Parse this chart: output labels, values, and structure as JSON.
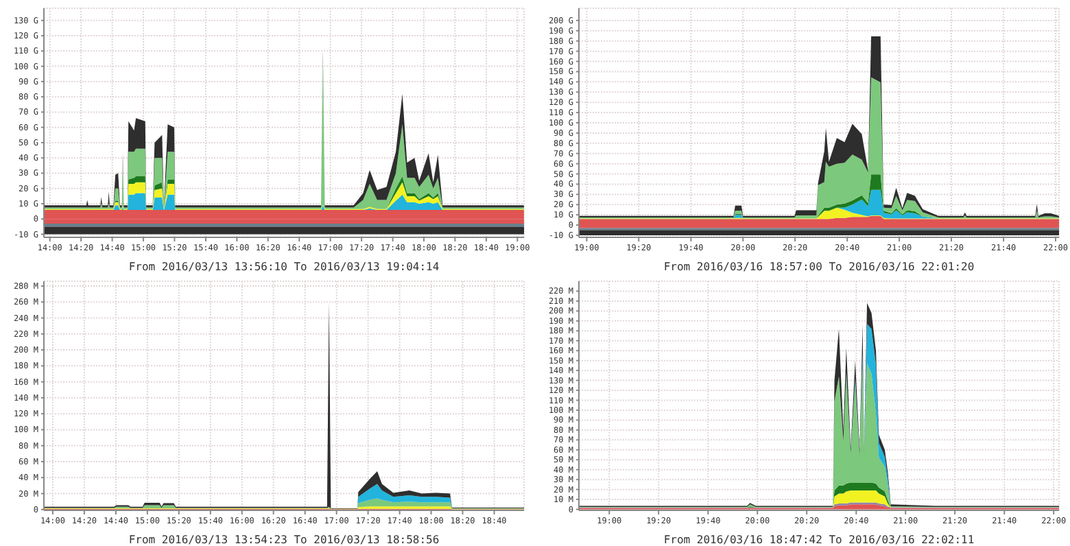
{
  "chart_data": [
    {
      "type": "area",
      "stacked": true,
      "grid": true,
      "xlabel": "From 2016/03/13 13:56:10 To 2016/03/13 19:04:14",
      "x": [
        13.936,
        14.39,
        14.4,
        14.41,
        14.54,
        14.55,
        14.56,
        14.62,
        14.63,
        14.64,
        14.68,
        14.7,
        14.73,
        14.75,
        14.77,
        14.78,
        14.79,
        14.83,
        14.84,
        14.9,
        14.92,
        15.02,
        15.03,
        15.1,
        15.12,
        15.2,
        15.22,
        15.26,
        15.33,
        15.34,
        16.9,
        16.92,
        16.94,
        17.25,
        17.35,
        17.42,
        17.5,
        17.6,
        17.7,
        17.77,
        17.82,
        17.9,
        17.95,
        18.05,
        18.1,
        18.15,
        18.2,
        19.07
      ],
      "xlim": [
        13.936,
        19.071
      ],
      "xticks": [
        {
          "value": 14,
          "label": "14:00"
        },
        {
          "value": 14.333,
          "label": "14:20"
        },
        {
          "value": 14.667,
          "label": "14:40"
        },
        {
          "value": 15,
          "label": "15:00"
        },
        {
          "value": 15.333,
          "label": "15:20"
        },
        {
          "value": 15.667,
          "label": "15:40"
        },
        {
          "value": 16,
          "label": "16:00"
        },
        {
          "value": 16.333,
          "label": "16:20"
        },
        {
          "value": 16.667,
          "label": "16:40"
        },
        {
          "value": 17,
          "label": "17:00"
        },
        {
          "value": 17.333,
          "label": "17:20"
        },
        {
          "value": 17.667,
          "label": "17:40"
        },
        {
          "value": 18,
          "label": "18:00"
        },
        {
          "value": 18.333,
          "label": "18:20"
        },
        {
          "value": 18.667,
          "label": "18:40"
        },
        {
          "value": 19,
          "label": "19:00"
        }
      ],
      "ylim": [
        -12,
        138
      ],
      "yticks": [
        {
          "value": -10,
          "label": "-10 G"
        },
        {
          "value": 0,
          "label": "0"
        },
        {
          "value": 10,
          "label": "10 G"
        },
        {
          "value": 20,
          "label": "20 G"
        },
        {
          "value": 30,
          "label": "30 G"
        },
        {
          "value": 40,
          "label": "40 G"
        },
        {
          "value": 50,
          "label": "50 G"
        },
        {
          "value": 60,
          "label": "60 G"
        },
        {
          "value": 70,
          "label": "70 G"
        },
        {
          "value": 80,
          "label": "80 G"
        },
        {
          "value": 90,
          "label": "90 G"
        },
        {
          "value": 100,
          "label": "100 G"
        },
        {
          "value": 110,
          "label": "110 G"
        },
        {
          "value": 120,
          "label": "120 G"
        },
        {
          "value": 130,
          "label": "130 G"
        }
      ],
      "bands": [
        {
          "axis": "y",
          "from": -3,
          "to": 0,
          "color": "#e05454"
        },
        {
          "axis": "y",
          "from": -5,
          "to": -3,
          "color": "#6a7f8c"
        },
        {
          "axis": "y",
          "from": -10,
          "to": -5,
          "color": "#2e2e2e"
        }
      ],
      "series": [
        {
          "color": "#e05454",
          "values": [
            6,
            6,
            6,
            6,
            6,
            6,
            6,
            6,
            6,
            6,
            6,
            6,
            6,
            6,
            6,
            6,
            6,
            6,
            6,
            6,
            6,
            6,
            6,
            6,
            6,
            6,
            6,
            6,
            6,
            6,
            6,
            6,
            6,
            6,
            6,
            6,
            6,
            6,
            6,
            6,
            6,
            6,
            6,
            6,
            6,
            6,
            6,
            6
          ]
        },
        {
          "color": "#22b4dc",
          "values": [
            0,
            0,
            0,
            0,
            0,
            0,
            0,
            0,
            0,
            0,
            0,
            3,
            3,
            0,
            0,
            2,
            0,
            0,
            10,
            10,
            11,
            11,
            0,
            0,
            8,
            8,
            0,
            10,
            10,
            0,
            0,
            3,
            0,
            0,
            0,
            1,
            0,
            0,
            6,
            10,
            5,
            5,
            4,
            5,
            4,
            5,
            0,
            0
          ]
        },
        {
          "color": "#f2f222",
          "values": [
            0.5,
            0.5,
            0.5,
            0.5,
            0.5,
            0.5,
            0.5,
            0.5,
            0.5,
            0.5,
            0.5,
            2,
            2,
            0.5,
            0.5,
            0.5,
            0.5,
            0.5,
            7,
            7,
            7,
            7,
            0.5,
            0.5,
            5,
            6,
            0.5,
            7,
            7,
            0.5,
            0.5,
            0.5,
            0.5,
            0.5,
            0.5,
            1,
            0.5,
            0.5,
            5,
            8,
            4,
            4,
            2,
            4,
            3,
            4,
            0.5,
            0.5
          ]
        },
        {
          "color": "#1e7a1e",
          "values": [
            0,
            0,
            0,
            0,
            0,
            0,
            0,
            0,
            0,
            0,
            0,
            1,
            1,
            0,
            0,
            0,
            0,
            0,
            3,
            4,
            4,
            4,
            0,
            0,
            3,
            4,
            0,
            3,
            3,
            0,
            0,
            0,
            0,
            0,
            0,
            0,
            0,
            0,
            3,
            4,
            2,
            2,
            1,
            2,
            1,
            2,
            0,
            0
          ]
        },
        {
          "color": "#7cc87c",
          "values": [
            1,
            1,
            1,
            1,
            1,
            4,
            1,
            1,
            4,
            1,
            1,
            8,
            8,
            1,
            1,
            30,
            1,
            1,
            18,
            17,
            18,
            18,
            1,
            1,
            18,
            16,
            1,
            18,
            18,
            1,
            1,
            96,
            1,
            1,
            6,
            15,
            6,
            6,
            10,
            34,
            10,
            10,
            8,
            12,
            6,
            10,
            1,
            1
          ]
        },
        {
          "color": "#2e2e2e",
          "values": [
            1.5,
            1.5,
            5,
            1.5,
            1.5,
            4,
            1.5,
            1.5,
            7.5,
            1.5,
            1.5,
            9,
            10,
            1.5,
            1.5,
            4.5,
            1.5,
            1.5,
            20,
            14,
            20,
            18,
            1.5,
            1.5,
            10,
            15,
            1.5,
            18,
            16,
            1.5,
            1.5,
            4.5,
            1.5,
            1.5,
            4.5,
            9,
            6.5,
            8.5,
            14,
            20,
            10,
            13,
            4,
            14,
            4,
            15,
            1.5,
            1.5
          ]
        }
      ]
    },
    {
      "type": "area",
      "stacked": true,
      "grid": true,
      "xlabel": "From 2016/03/16 18:57:00 To 2016/03/16 22:01:20",
      "x": [
        18.95,
        19.94,
        19.95,
        19.99,
        20.0,
        20.33,
        20.34,
        20.47,
        20.48,
        20.52,
        20.53,
        20.55,
        20.6,
        20.65,
        20.7,
        20.76,
        20.8,
        20.82,
        20.88,
        20.9,
        20.95,
        20.98,
        21.02,
        21.05,
        21.1,
        21.15,
        21.25,
        21.41,
        21.42,
        21.43,
        21.87,
        21.88,
        21.89,
        21.93,
        21.97,
        22.022
      ],
      "xlim": [
        18.95,
        22.022
      ],
      "xticks": [
        {
          "value": 19,
          "label": "19:00"
        },
        {
          "value": 19.333,
          "label": "19:20"
        },
        {
          "value": 19.667,
          "label": "19:40"
        },
        {
          "value": 20,
          "label": "20:00"
        },
        {
          "value": 20.333,
          "label": "20:20"
        },
        {
          "value": 20.667,
          "label": "20:40"
        },
        {
          "value": 21,
          "label": "21:00"
        },
        {
          "value": 21.333,
          "label": "21:20"
        },
        {
          "value": 21.667,
          "label": "21:40"
        },
        {
          "value": 22,
          "label": "22:00"
        }
      ],
      "ylim": [
        -12,
        212
      ],
      "yticks": [
        {
          "value": -10,
          "label": "-10 G"
        },
        {
          "value": 0,
          "label": "0"
        },
        {
          "value": 10,
          "label": "10 G"
        },
        {
          "value": 20,
          "label": "20 G"
        },
        {
          "value": 30,
          "label": "30 G"
        },
        {
          "value": 40,
          "label": "40 G"
        },
        {
          "value": 50,
          "label": "50 G"
        },
        {
          "value": 60,
          "label": "60 G"
        },
        {
          "value": 70,
          "label": "70 G"
        },
        {
          "value": 80,
          "label": "80 G"
        },
        {
          "value": 90,
          "label": "90 G"
        },
        {
          "value": 100,
          "label": "100 G"
        },
        {
          "value": 110,
          "label": "110 G"
        },
        {
          "value": 120,
          "label": "120 G"
        },
        {
          "value": 130,
          "label": "130 G"
        },
        {
          "value": 140,
          "label": "140 G"
        },
        {
          "value": 150,
          "label": "150 G"
        },
        {
          "value": 160,
          "label": "160 G"
        },
        {
          "value": 170,
          "label": "170 G"
        },
        {
          "value": 180,
          "label": "180 G"
        },
        {
          "value": 190,
          "label": "190 G"
        },
        {
          "value": 200,
          "label": "200 G"
        }
      ],
      "bands": [
        {
          "axis": "y",
          "from": -3,
          "to": 0,
          "color": "#e05454"
        },
        {
          "axis": "y",
          "from": -5,
          "to": -3,
          "color": "#6a7f8c"
        },
        {
          "axis": "y",
          "from": -10,
          "to": -5,
          "color": "#2e2e2e"
        }
      ],
      "series": [
        {
          "color": "#e05454",
          "values": [
            6,
            6,
            6,
            6,
            6,
            6,
            6,
            6,
            6,
            6,
            6,
            6,
            7,
            7,
            8,
            8,
            8,
            9,
            9,
            6,
            6,
            6,
            6,
            6,
            6,
            6,
            6,
            6,
            6,
            6,
            6,
            6,
            6,
            6,
            6,
            6
          ]
        },
        {
          "color": "#f2f222",
          "values": [
            0.5,
            0.5,
            1,
            1,
            0.5,
            0.5,
            0.5,
            0.5,
            2,
            8,
            8,
            8,
            10,
            8,
            4,
            2,
            0.5,
            0.5,
            0.5,
            1,
            0.5,
            0.5,
            0.5,
            0.5,
            0.5,
            0.5,
            0.5,
            0.5,
            0.5,
            0.5,
            0.5,
            0.5,
            0.5,
            0.5,
            0.5,
            0.5
          ]
        },
        {
          "color": "#22b4dc",
          "values": [
            0,
            0,
            3,
            3,
            0,
            0,
            0,
            0,
            0,
            0,
            0,
            0,
            0,
            2,
            8,
            15,
            10,
            25,
            25,
            5,
            4,
            8,
            3,
            6,
            5,
            2,
            0,
            0,
            0,
            0,
            0,
            0,
            0,
            0,
            0,
            0
          ]
        },
        {
          "color": "#1e7a1e",
          "values": [
            0,
            0,
            1,
            1,
            0,
            0,
            0,
            0,
            1,
            3,
            3,
            3,
            3,
            4,
            4,
            4,
            3,
            15,
            15,
            2,
            1,
            2,
            1,
            2,
            2,
            0,
            0,
            0,
            0,
            0,
            0,
            0,
            0,
            0,
            0,
            0
          ]
        },
        {
          "color": "#7cc87c",
          "values": [
            1,
            1,
            3,
            3,
            1,
            1,
            3,
            3,
            30,
            25,
            45,
            40,
            40,
            40,
            45,
            35,
            30,
            95,
            90,
            3,
            5,
            12,
            4,
            10,
            10,
            4,
            1,
            1,
            3,
            1,
            1,
            8,
            1,
            2,
            2,
            1
          ]
        },
        {
          "color": "#2e2e2e",
          "values": [
            1.5,
            1.5,
            5,
            5,
            1.5,
            1.5,
            5,
            5,
            2,
            30,
            33,
            5,
            25,
            20,
            30,
            25,
            2,
            40,
            45,
            3,
            3,
            8,
            2,
            7,
            5,
            3,
            1.5,
            1.5,
            3,
            1.5,
            1.5,
            6,
            1.5,
            3,
            3,
            1.5
          ]
        }
      ]
    },
    {
      "type": "area",
      "stacked": true,
      "grid": true,
      "xlabel": "From 2016/03/13 13:54:23 To 2016/03/13 18:58:56",
      "x": [
        13.906,
        14.65,
        14.67,
        14.8,
        14.82,
        14.95,
        14.97,
        15.13,
        15.15,
        15.17,
        15.28,
        15.3,
        16.9,
        16.92,
        16.94,
        17.22,
        17.23,
        17.35,
        17.43,
        17.48,
        17.6,
        17.77,
        17.9,
        18.05,
        18.2,
        18.22,
        18.982
      ],
      "xlim": [
        13.906,
        18.982
      ],
      "xticks": [
        {
          "value": 14,
          "label": "14:00"
        },
        {
          "value": 14.333,
          "label": "14:20"
        },
        {
          "value": 14.667,
          "label": "14:40"
        },
        {
          "value": 15,
          "label": "15:00"
        },
        {
          "value": 15.333,
          "label": "15:20"
        },
        {
          "value": 15.667,
          "label": "15:40"
        },
        {
          "value": 16,
          "label": "16:00"
        },
        {
          "value": 16.333,
          "label": "16:20"
        },
        {
          "value": 16.667,
          "label": "16:40"
        },
        {
          "value": 17,
          "label": "17:00"
        },
        {
          "value": 17.333,
          "label": "17:20"
        },
        {
          "value": 17.667,
          "label": "17:40"
        },
        {
          "value": 18,
          "label": "18:00"
        },
        {
          "value": 18.333,
          "label": "18:20"
        },
        {
          "value": 18.667,
          "label": "18:40"
        }
      ],
      "ylim": [
        -1,
        286
      ],
      "yticks": [
        {
          "value": 0,
          "label": "0"
        },
        {
          "value": 20,
          "label": "20 M"
        },
        {
          "value": 40,
          "label": "40 M"
        },
        {
          "value": 60,
          "label": "60 M"
        },
        {
          "value": 80,
          "label": "80 M"
        },
        {
          "value": 100,
          "label": "100 M"
        },
        {
          "value": 120,
          "label": "120 M"
        },
        {
          "value": 140,
          "label": "140 M"
        },
        {
          "value": 160,
          "label": "160 M"
        },
        {
          "value": 180,
          "label": "180 M"
        },
        {
          "value": 200,
          "label": "200 M"
        },
        {
          "value": 220,
          "label": "220 M"
        },
        {
          "value": 240,
          "label": "240 M"
        },
        {
          "value": 260,
          "label": "260 M"
        },
        {
          "value": 280,
          "label": "280 M"
        }
      ],
      "series": [
        {
          "color": "#e05454",
          "values": [
            1,
            1,
            1,
            1,
            1,
            1,
            1,
            1,
            1,
            1,
            1,
            1,
            1,
            1,
            0.5,
            0.5,
            1,
            1,
            1,
            1,
            1,
            1,
            1,
            1,
            1,
            0.5,
            0.5
          ]
        },
        {
          "color": "#f2f222",
          "values": [
            0.5,
            0.5,
            0.5,
            0.5,
            0.5,
            0.5,
            0.5,
            0.5,
            0.5,
            0.5,
            0.5,
            0.5,
            0.5,
            0.5,
            0.5,
            0.5,
            2,
            3,
            3,
            3,
            3,
            3,
            3,
            3,
            3,
            0.5,
            0.5
          ]
        },
        {
          "color": "#7cc87c",
          "values": [
            0.5,
            0.5,
            2,
            2,
            0.5,
            0.5,
            4,
            4,
            0.5,
            4,
            4,
            0.5,
            0.5,
            2,
            0,
            0,
            5,
            8,
            10,
            8,
            5,
            6,
            5,
            5,
            5,
            0.5,
            0.5
          ]
        },
        {
          "color": "#22b4dc",
          "values": [
            0,
            0,
            0,
            0,
            0,
            0,
            0,
            0,
            0,
            0,
            0,
            0,
            0,
            0,
            0,
            0,
            8,
            14,
            18,
            12,
            7,
            8,
            7,
            7,
            6,
            0,
            0
          ]
        },
        {
          "color": "#2e2e2e",
          "values": [
            1.5,
            1.5,
            2,
            2,
            1.5,
            1.5,
            3,
            3,
            1.5,
            2.5,
            2.5,
            1.5,
            1.5,
            256.5,
            0.5,
            0.5,
            6,
            12,
            16,
            8,
            5,
            6,
            4,
            5,
            5,
            1,
            1
          ]
        }
      ]
    },
    {
      "type": "area",
      "stacked": true,
      "grid": true,
      "xlabel": "From 2016/03/16 18:47:42 To 2016/03/16 22:02:11",
      "x": [
        18.795,
        19.93,
        19.95,
        19.99,
        20.51,
        20.52,
        20.55,
        20.58,
        20.6,
        20.63,
        20.66,
        20.69,
        20.71,
        20.72,
        20.74,
        20.77,
        20.8,
        20.82,
        20.86,
        20.88,
        20.9,
        21.2,
        22.036
      ],
      "xlim": [
        18.795,
        22.036
      ],
      "xticks": [
        {
          "value": 19,
          "label": "19:00"
        },
        {
          "value": 19.333,
          "label": "19:20"
        },
        {
          "value": 19.667,
          "label": "19:40"
        },
        {
          "value": 20,
          "label": "20:00"
        },
        {
          "value": 20.333,
          "label": "20:20"
        },
        {
          "value": 20.667,
          "label": "20:40"
        },
        {
          "value": 21,
          "label": "21:00"
        },
        {
          "value": 21.333,
          "label": "21:20"
        },
        {
          "value": 21.667,
          "label": "21:40"
        },
        {
          "value": 22,
          "label": "22:00"
        }
      ],
      "ylim": [
        -1,
        230
      ],
      "yticks": [
        {
          "value": 0,
          "label": "0"
        },
        {
          "value": 10,
          "label": "10 M"
        },
        {
          "value": 20,
          "label": "20 M"
        },
        {
          "value": 30,
          "label": "30 M"
        },
        {
          "value": 40,
          "label": "40 M"
        },
        {
          "value": 50,
          "label": "50 M"
        },
        {
          "value": 60,
          "label": "60 M"
        },
        {
          "value": 70,
          "label": "70 M"
        },
        {
          "value": 80,
          "label": "80 M"
        },
        {
          "value": 90,
          "label": "90 M"
        },
        {
          "value": 100,
          "label": "100 M"
        },
        {
          "value": 110,
          "label": "110 M"
        },
        {
          "value": 120,
          "label": "120 M"
        },
        {
          "value": 130,
          "label": "130 M"
        },
        {
          "value": 140,
          "label": "140 M"
        },
        {
          "value": 150,
          "label": "150 M"
        },
        {
          "value": 160,
          "label": "160 M"
        },
        {
          "value": 170,
          "label": "170 M"
        },
        {
          "value": 180,
          "label": "180 M"
        },
        {
          "value": 190,
          "label": "190 M"
        },
        {
          "value": 200,
          "label": "200 M"
        },
        {
          "value": 210,
          "label": "210 M"
        },
        {
          "value": 220,
          "label": "220 M"
        }
      ],
      "series": [
        {
          "color": "#e05454",
          "values": [
            1.5,
            1.5,
            1.5,
            1.5,
            1.5,
            3,
            4,
            4,
            4,
            5,
            5,
            5,
            5,
            5,
            5,
            5,
            5,
            4,
            3,
            2,
            1.5,
            1.5,
            1.5
          ]
        },
        {
          "color": "#9484a8",
          "values": [
            0.5,
            0.5,
            0.5,
            0.5,
            0.5,
            2,
            2,
            2,
            2,
            2,
            2,
            2,
            2,
            2,
            2,
            2,
            2,
            2,
            2,
            1,
            0.5,
            0.5,
            0.5
          ]
        },
        {
          "color": "#f2f222",
          "values": [
            0,
            0,
            0,
            0,
            0,
            8,
            10,
            10,
            12,
            12,
            12,
            12,
            12,
            12,
            12,
            12,
            12,
            10,
            8,
            3,
            0,
            0,
            0
          ]
        },
        {
          "color": "#1e7a1e",
          "values": [
            0,
            0,
            1,
            0,
            0,
            6,
            8,
            8,
            8,
            8,
            8,
            8,
            8,
            8,
            8,
            8,
            7,
            6,
            5,
            3,
            0,
            0,
            0
          ]
        },
        {
          "color": "#7cc87c",
          "values": [
            0.5,
            0.5,
            2,
            0.5,
            0.5,
            90,
            110,
            45,
            110,
            30,
            100,
            28,
            120,
            28,
            120,
            110,
            70,
            30,
            25,
            15,
            1,
            0.5,
            0.5
          ]
        },
        {
          "color": "#22b4dc",
          "values": [
            0,
            0,
            0,
            0,
            0,
            0,
            0,
            0,
            2,
            0,
            5,
            0,
            10,
            0,
            40,
            45,
            50,
            15,
            10,
            8,
            0,
            0,
            0
          ]
        },
        {
          "color": "#2e2e2e",
          "values": [
            1,
            1,
            1.5,
            1,
            1,
            21,
            48,
            11,
            25,
            5,
            18,
            5,
            30,
            5,
            21,
            16,
            14,
            8,
            7,
            6,
            2,
            1,
            1
          ]
        }
      ]
    }
  ]
}
